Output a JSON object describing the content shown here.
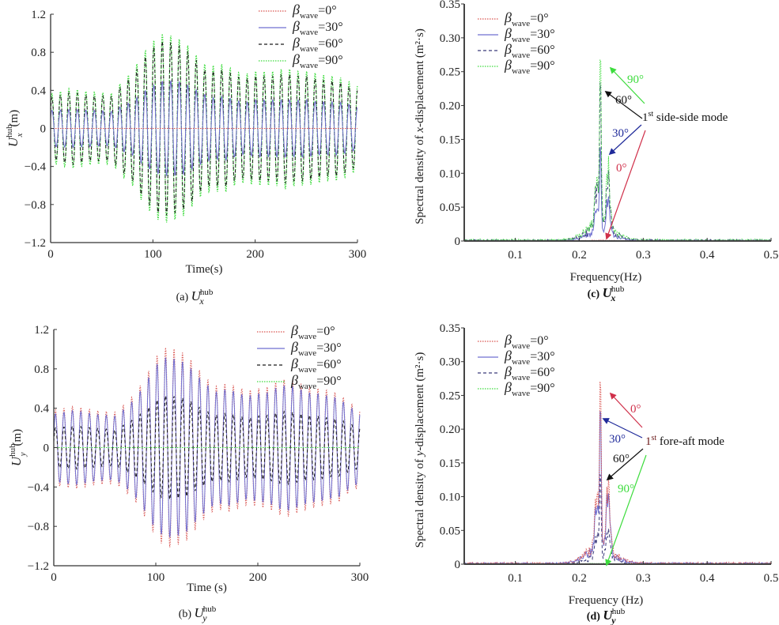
{
  "chart_data": [
    {
      "id": "a",
      "type": "line",
      "caption": "(a) U_x^hub",
      "caption_prefix": "(a)",
      "caption_symbol": "U",
      "caption_sub": "x",
      "caption_sup": "hub",
      "xlabel": "Time(s)",
      "ylabel": "U_x^hub(m)",
      "ylabel_symbol": "U",
      "ylabel_sub": "x",
      "ylabel_sup": "hub",
      "ylabel_unit": "(m)",
      "xlim": [
        0,
        300
      ],
      "ylim": [
        -1.2,
        1.2
      ],
      "xticks": [
        "0",
        "100",
        "200",
        "300"
      ],
      "yticks": [
        "1.2",
        "0.8",
        "0.4",
        "0",
        "−0.4",
        "−0.8",
        "−1.2"
      ],
      "legend_position": "top-right",
      "period_s": 8.3,
      "envelope_time_s": [
        0,
        20,
        40,
        60,
        70,
        80,
        90,
        100,
        110,
        120,
        130,
        140,
        150,
        160,
        170,
        180,
        190,
        200,
        210,
        220,
        230,
        240,
        250,
        260,
        270,
        280,
        290,
        300
      ],
      "series": [
        {
          "name": "βwave=0°",
          "angle": "=0°",
          "color": "#d9534f",
          "dash": "dot",
          "envelope_amplitude": [
            0,
            0,
            0,
            0,
            0,
            0,
            0,
            0,
            0,
            0,
            0,
            0,
            0,
            0,
            0,
            0,
            0,
            0,
            0,
            0,
            0,
            0,
            0,
            0,
            0,
            0,
            0,
            0
          ]
        },
        {
          "name": "βwave=30°",
          "angle": "=30°",
          "color": "#6f6fd0",
          "dash": "solid",
          "envelope_amplitude": [
            0.19,
            0.2,
            0.19,
            0.18,
            0.24,
            0.28,
            0.38,
            0.45,
            0.5,
            0.5,
            0.48,
            0.42,
            0.36,
            0.32,
            0.34,
            0.3,
            0.27,
            0.3,
            0.3,
            0.3,
            0.3,
            0.3,
            0.3,
            0.28,
            0.28,
            0.28,
            0.26,
            0.22
          ]
        },
        {
          "name": "βwave=60°",
          "angle": "=60°",
          "color": "#1a1a1a",
          "dash": "dash",
          "envelope_amplitude": [
            0.32,
            0.38,
            0.34,
            0.34,
            0.46,
            0.55,
            0.72,
            0.85,
            0.92,
            0.9,
            0.85,
            0.75,
            0.62,
            0.6,
            0.62,
            0.55,
            0.52,
            0.55,
            0.55,
            0.55,
            0.58,
            0.55,
            0.55,
            0.52,
            0.5,
            0.5,
            0.45,
            0.4
          ]
        },
        {
          "name": "βwave=90°",
          "angle": "=90°",
          "color": "#3ddc3d",
          "dash": "dot",
          "envelope_amplitude": [
            0.36,
            0.42,
            0.38,
            0.37,
            0.5,
            0.6,
            0.78,
            0.92,
            1.0,
            0.97,
            0.92,
            0.8,
            0.68,
            0.66,
            0.68,
            0.6,
            0.57,
            0.6,
            0.6,
            0.6,
            0.64,
            0.6,
            0.6,
            0.58,
            0.55,
            0.55,
            0.5,
            0.45
          ]
        }
      ]
    },
    {
      "id": "b",
      "type": "line",
      "caption": "(b) U_y^hub",
      "caption_prefix": "(b)",
      "caption_symbol": "U",
      "caption_sub": "y",
      "caption_sup": "hub",
      "xlabel": "Time (s)",
      "ylabel": "U_y^hub(m)",
      "ylabel_symbol": "U",
      "ylabel_sub": "y",
      "ylabel_sup": "hub",
      "ylabel_unit": "(m)",
      "xlim": [
        0,
        300
      ],
      "ylim": [
        -1.2,
        1.2
      ],
      "xticks": [
        "0",
        "100",
        "200",
        "300"
      ],
      "yticks": [
        "1.2",
        "0.8",
        "0.4",
        "0",
        "−0.4",
        "−0.8",
        "−1.2"
      ],
      "legend_position": "top-right",
      "period_s": 8.3,
      "envelope_time_s": [
        0,
        20,
        40,
        60,
        70,
        80,
        90,
        100,
        110,
        120,
        130,
        140,
        150,
        160,
        170,
        180,
        190,
        200,
        210,
        220,
        230,
        240,
        250,
        260,
        270,
        280,
        290,
        300
      ],
      "series": [
        {
          "name": "βwave=0°",
          "angle": "=0°",
          "color": "#d9534f",
          "dash": "dot",
          "envelope_amplitude": [
            0.38,
            0.42,
            0.38,
            0.36,
            0.45,
            0.55,
            0.72,
            0.92,
            1.02,
            1.0,
            0.95,
            0.82,
            0.7,
            0.62,
            0.66,
            0.62,
            0.58,
            0.6,
            0.62,
            0.68,
            0.7,
            0.66,
            0.62,
            0.6,
            0.58,
            0.55,
            0.45,
            0.4
          ]
        },
        {
          "name": "βwave=30°",
          "angle": "=30°",
          "color": "#6f6fd0",
          "dash": "solid",
          "envelope_amplitude": [
            0.34,
            0.38,
            0.34,
            0.32,
            0.4,
            0.5,
            0.66,
            0.84,
            0.92,
            0.9,
            0.86,
            0.74,
            0.64,
            0.56,
            0.6,
            0.56,
            0.52,
            0.55,
            0.56,
            0.62,
            0.64,
            0.6,
            0.56,
            0.55,
            0.52,
            0.5,
            0.41,
            0.36
          ]
        },
        {
          "name": "βwave=60°",
          "angle": "=60°",
          "color": "#1a1a1a",
          "dash": "dash",
          "envelope_amplitude": [
            0.2,
            0.22,
            0.2,
            0.18,
            0.24,
            0.3,
            0.38,
            0.48,
            0.53,
            0.52,
            0.5,
            0.43,
            0.37,
            0.33,
            0.35,
            0.33,
            0.3,
            0.32,
            0.33,
            0.36,
            0.37,
            0.35,
            0.33,
            0.32,
            0.3,
            0.29,
            0.24,
            0.21
          ]
        },
        {
          "name": "βwave=90°",
          "angle": "=90°",
          "color": "#3ddc3d",
          "dash": "dot",
          "envelope_amplitude": [
            0,
            0,
            0,
            0,
            0,
            0,
            0,
            0,
            0,
            0,
            0,
            0,
            0,
            0,
            0,
            0,
            0,
            0,
            0,
            0,
            0,
            0,
            0,
            0,
            0,
            0,
            0,
            0
          ]
        }
      ]
    },
    {
      "id": "c",
      "type": "line",
      "caption": "(c) U_x^hub",
      "caption_prefix": "(c)",
      "caption_symbol": "U",
      "caption_sub": "x",
      "caption_sup": "hub",
      "xlabel": "Frequency(Hz)",
      "ylabel": "Spectral density of x-displacement (m²·s)",
      "ylabel_pre": "Spectral density of ",
      "ylabel_var": "x",
      "ylabel_post": "-displacement (m²·s)",
      "xlim": [
        0.02,
        0.5
      ],
      "ylim": [
        0,
        0.35
      ],
      "xticks": [
        "0.1",
        "0.2",
        "0.3",
        "0.4",
        "0.5"
      ],
      "xtick_values": [
        0.1,
        0.2,
        0.3,
        0.4,
        0.5
      ],
      "yticks": [
        "0.35",
        "0.30",
        "0.25",
        "0.20",
        "0.15",
        "0.10",
        "0.05",
        "0"
      ],
      "legend_position": "top-left",
      "peak_frequency_hz": 0.233,
      "series": [
        {
          "name": "βwave=0°",
          "angle": "=0°",
          "color": "#d9534f",
          "dash": "dot",
          "peak": 0.0,
          "side_peak": 0.0,
          "background": 0.001
        },
        {
          "name": "βwave=30°",
          "angle": "=30°",
          "color": "#6f6fd0",
          "dash": "solid",
          "peak": 0.13,
          "side_peak": 0.06,
          "background": 0.012
        },
        {
          "name": "βwave=60°",
          "angle": "=60°",
          "color": "#3a3a7a",
          "dash": "dash",
          "peak": 0.22,
          "side_peak": 0.09,
          "background": 0.02
        },
        {
          "name": "βwave=90°",
          "angle": "=90°",
          "color": "#3ddc3d",
          "dash": "dot",
          "peak": 0.26,
          "side_peak": 0.1,
          "background": 0.024
        }
      ],
      "annotation": {
        "mode_label_sup": "st",
        "mode_label_num": "1",
        "mode_label_text": " side-side mode",
        "arrows": [
          {
            "label": "90°",
            "color": "#3ddc3d"
          },
          {
            "label": "60°",
            "color": "#111111"
          },
          {
            "label": "30°",
            "color": "#1f2a9a"
          },
          {
            "label": "0°",
            "color": "#d0304a"
          }
        ]
      }
    },
    {
      "id": "d",
      "type": "line",
      "caption": "(d) U_y^hub",
      "caption_prefix": "(d)",
      "caption_symbol": "U",
      "caption_sub": "y",
      "caption_sup": "hub",
      "xlabel": "Frequency (Hz)",
      "ylabel": "Spectral density of y-displacement (m²·s)",
      "ylabel_pre": "Spectral density of ",
      "ylabel_var": "y",
      "ylabel_post": "-displacement (m²·s)",
      "xlim": [
        0.02,
        0.5
      ],
      "ylim": [
        0,
        0.35
      ],
      "xticks": [
        "0.1",
        "0.2",
        "0.3",
        "0.4",
        "0.5"
      ],
      "xtick_values": [
        0.1,
        0.2,
        0.3,
        0.4,
        0.5
      ],
      "yticks": [
        "0.35",
        "0.30",
        "0.25",
        "0.20",
        "0.15",
        "0.10",
        "0.05",
        "0"
      ],
      "legend_position": "top-left",
      "peak_frequency_hz": 0.233,
      "series": [
        {
          "name": "βwave=0°",
          "angle": "=0°",
          "color": "#d9534f",
          "dash": "dot",
          "peak": 0.265,
          "side_peak": 0.11,
          "background": 0.024
        },
        {
          "name": "βwave=30°",
          "angle": "=30°",
          "color": "#6f6fd0",
          "dash": "solid",
          "peak": 0.22,
          "side_peak": 0.1,
          "background": 0.02
        },
        {
          "name": "βwave=60°",
          "angle": "=60°",
          "color": "#3a3a7a",
          "dash": "dash",
          "peak": 0.13,
          "side_peak": 0.05,
          "background": 0.01
        },
        {
          "name": "βwave=90°",
          "angle": "=90°",
          "color": "#3ddc3d",
          "dash": "dot",
          "peak": 0.0,
          "side_peak": 0.0,
          "background": 0.001
        }
      ],
      "annotation": {
        "mode_label_sup": "st",
        "mode_label_num": "1",
        "mode_label_text": " fore-aft mode",
        "arrows": [
          {
            "label": "0°",
            "color": "#d0304a"
          },
          {
            "label": "30°",
            "color": "#1f2a9a"
          },
          {
            "label": "60°",
            "color": "#111111"
          },
          {
            "label": "90°",
            "color": "#3ddc3d"
          }
        ]
      }
    }
  ],
  "legend": {
    "beta_symbol": "β",
    "beta_sub": "wave"
  }
}
